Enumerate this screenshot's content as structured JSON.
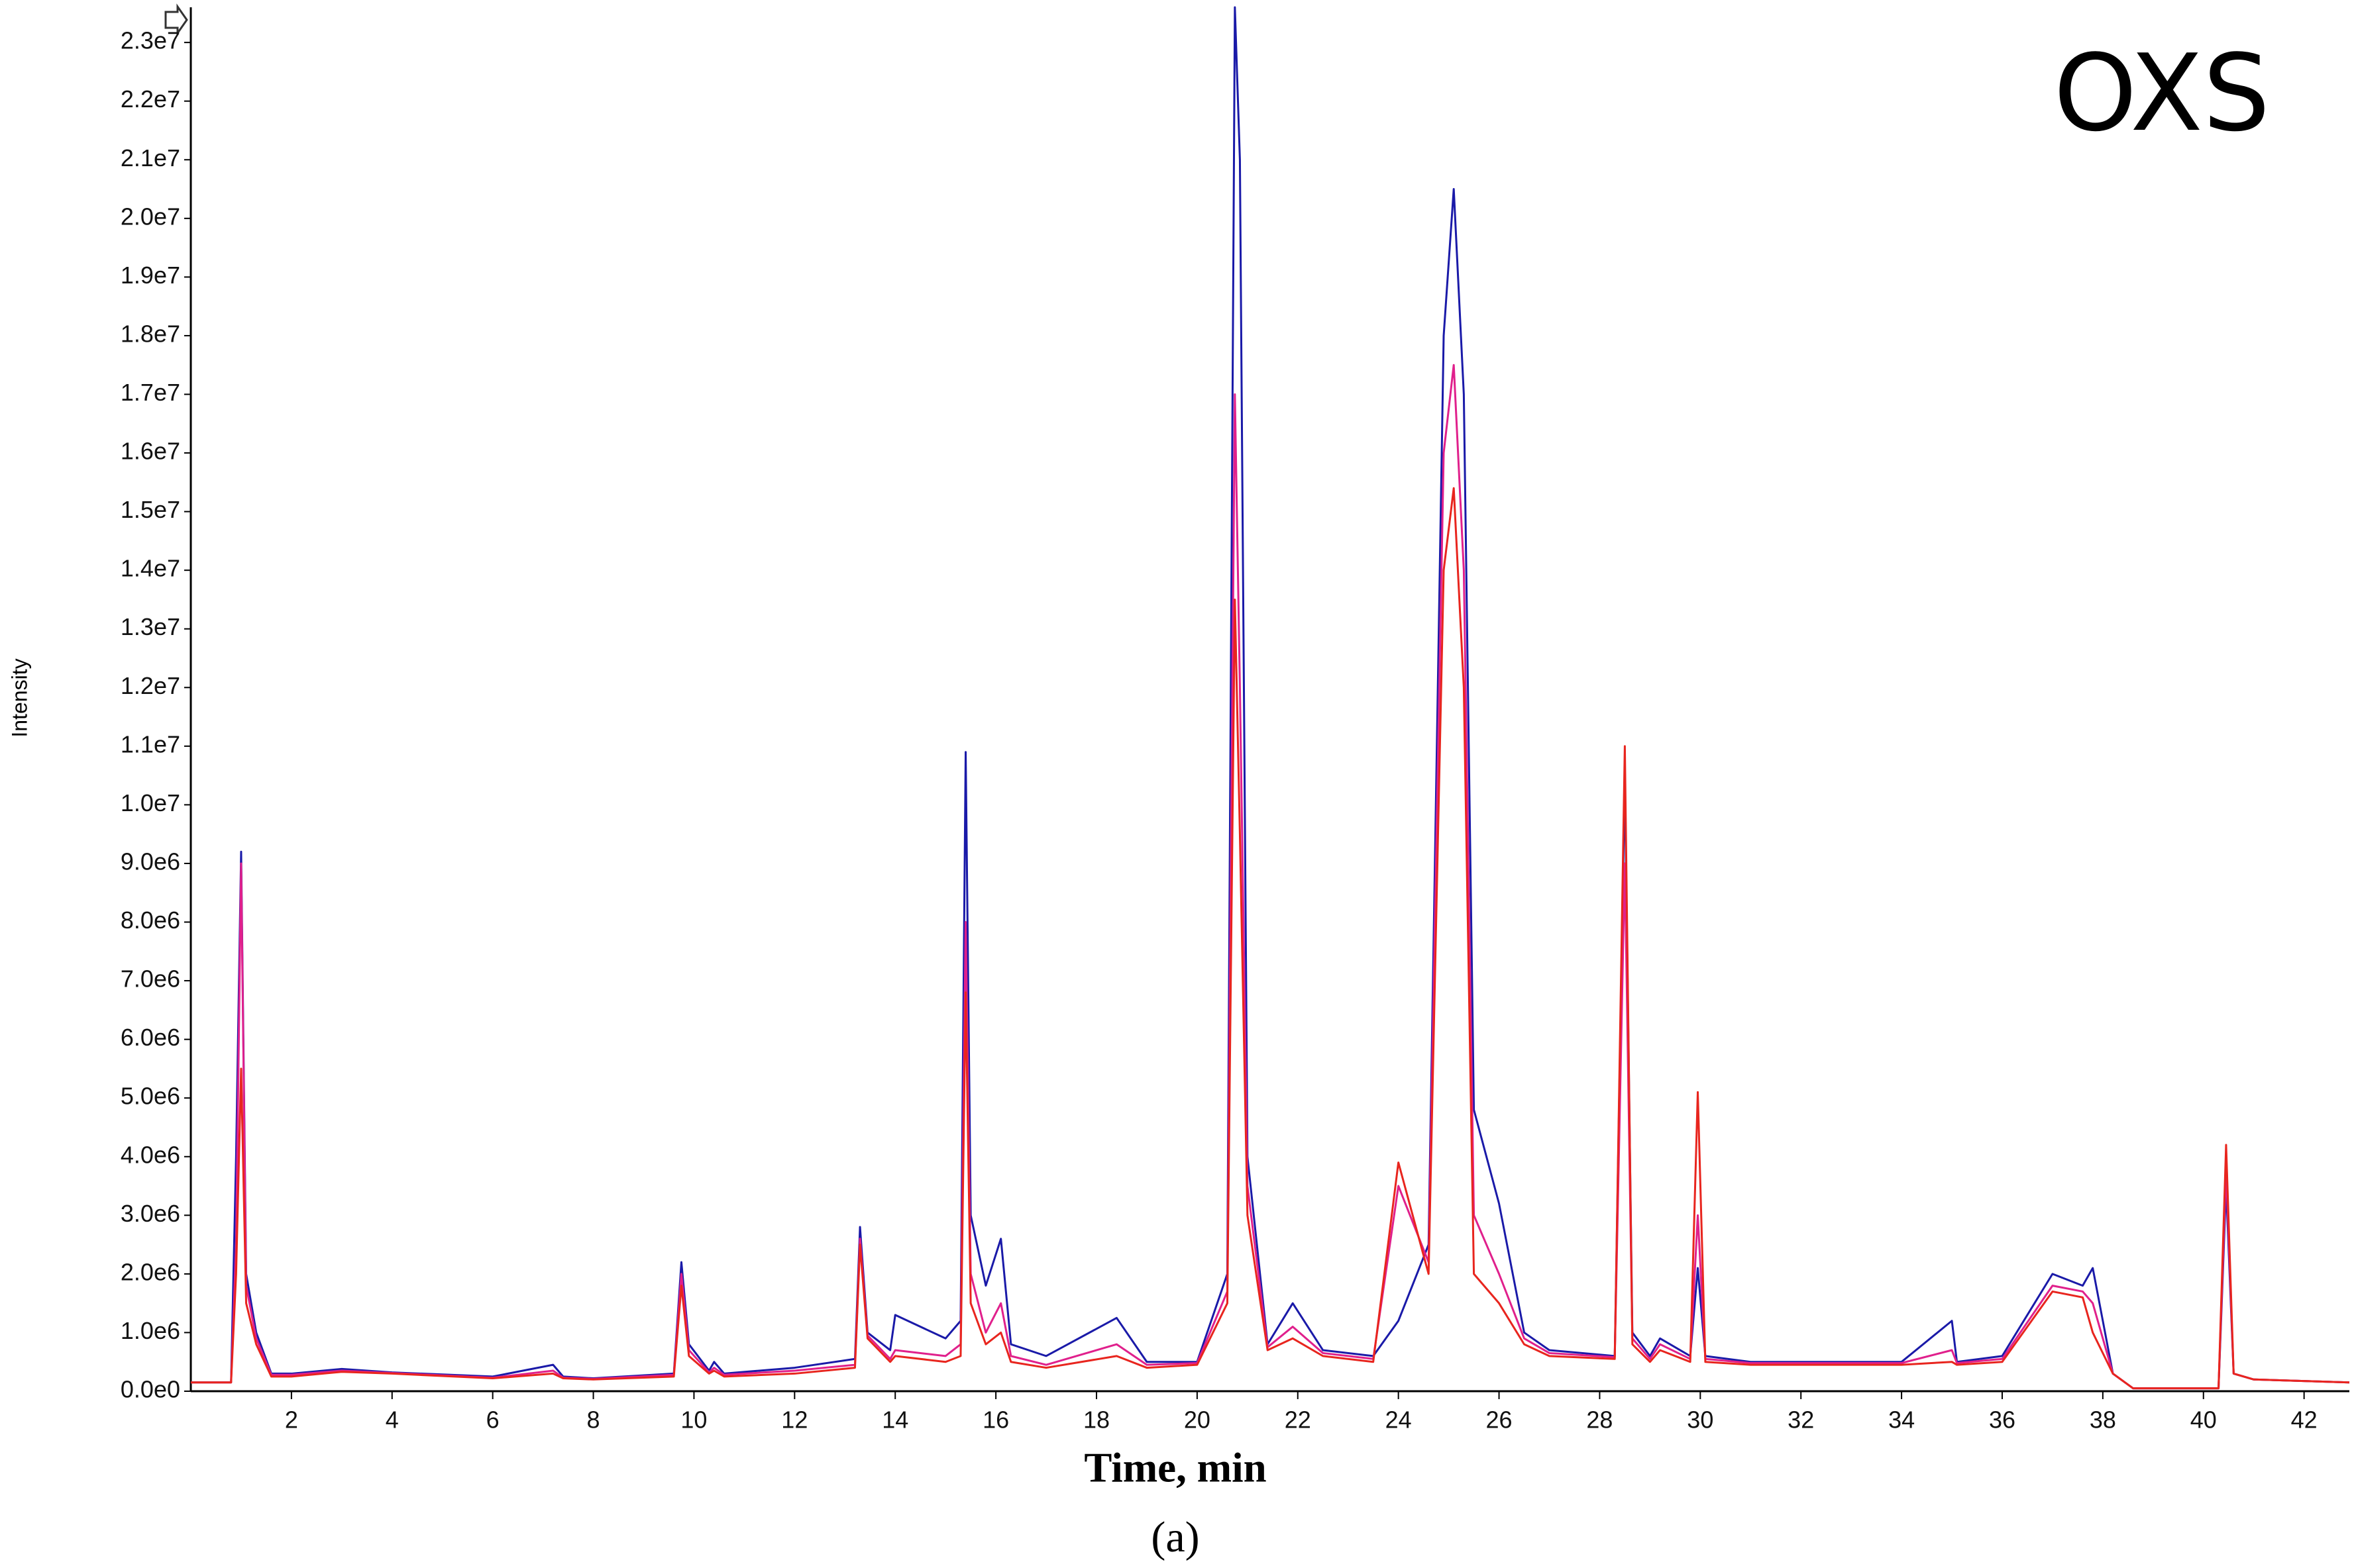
{
  "chart_data": {
    "type": "line",
    "title": "OXS",
    "x_label": "Time, min",
    "y_label": "Intensity",
    "caption": "(a)",
    "xlim": [
      0,
      42.9
    ],
    "ylim": [
      0,
      23600000
    ],
    "xticks": [
      2,
      4,
      6,
      8,
      10,
      12,
      14,
      16,
      18,
      20,
      22,
      24,
      26,
      28,
      30,
      32,
      34,
      36,
      38,
      40,
      42
    ],
    "yticks": [
      {
        "value": 0,
        "label": "0.0e0"
      },
      {
        "value": 1000000,
        "label": "1.0e6"
      },
      {
        "value": 2000000,
        "label": "2.0e6"
      },
      {
        "value": 3000000,
        "label": "3.0e6"
      },
      {
        "value": 4000000,
        "label": "4.0e6"
      },
      {
        "value": 5000000,
        "label": "5.0e6"
      },
      {
        "value": 6000000,
        "label": "6.0e6"
      },
      {
        "value": 7000000,
        "label": "7.0e6"
      },
      {
        "value": 8000000,
        "label": "8.0e6"
      },
      {
        "value": 9000000,
        "label": "9.0e6"
      },
      {
        "value": 10000000,
        "label": "1.0e7"
      },
      {
        "value": 11000000,
        "label": "1.1e7"
      },
      {
        "value": 12000000,
        "label": "1.2e7"
      },
      {
        "value": 13000000,
        "label": "1.3e7"
      },
      {
        "value": 14000000,
        "label": "1.4e7"
      },
      {
        "value": 15000000,
        "label": "1.5e7"
      },
      {
        "value": 16000000,
        "label": "1.6e7"
      },
      {
        "value": 17000000,
        "label": "1.7e7"
      },
      {
        "value": 18000000,
        "label": "1.8e7"
      },
      {
        "value": 19000000,
        "label": "1.9e7"
      },
      {
        "value": 20000000,
        "label": "2.0e7"
      },
      {
        "value": 21000000,
        "label": "2.1e7"
      },
      {
        "value": 22000000,
        "label": "2.2e7"
      },
      {
        "value": 23000000,
        "label": "2.3e7"
      }
    ],
    "grid": false,
    "x": [
      0,
      0.8,
      0.9,
      1.0,
      1.1,
      1.3,
      1.6,
      2,
      3,
      4,
      6,
      7.2,
      7.4,
      8,
      9.6,
      9.75,
      9.9,
      10.3,
      10.4,
      10.6,
      12,
      13.2,
      13.3,
      13.45,
      13.9,
      14,
      15,
      15.3,
      15.4,
      15.5,
      15.8,
      16.1,
      16.3,
      17,
      18.4,
      19,
      20,
      20.6,
      20.75,
      20.85,
      21.0,
      21.4,
      21.9,
      22.5,
      23.5,
      24,
      24.6,
      24.9,
      25.1,
      25.3,
      25.5,
      26,
      26.5,
      27,
      28.3,
      28.5,
      28.65,
      29,
      29.2,
      29.8,
      29.95,
      30.1,
      31,
      34,
      35,
      35.1,
      36,
      37,
      37.6,
      37.8,
      38.2,
      38.6,
      40.3,
      40.45,
      40.6,
      41,
      42.9
    ],
    "series": [
      {
        "color": "#1a1aa8",
        "values": [
          150000,
          150000,
          4000000,
          9200000,
          2000000,
          1000000,
          300000,
          300000,
          380000,
          320000,
          250000,
          450000,
          250000,
          220000,
          300000,
          2200000,
          800000,
          350000,
          500000,
          300000,
          400000,
          550000,
          2800000,
          1000000,
          700000,
          1300000,
          900000,
          1200000,
          10900000,
          3000000,
          1800000,
          2600000,
          800000,
          600000,
          1250000,
          500000,
          500000,
          2000000,
          23600000,
          21000000,
          4000000,
          800000,
          1500000,
          700000,
          600000,
          1200000,
          2500000,
          18000000,
          20500000,
          17000000,
          4800000,
          3200000,
          1000000,
          700000,
          600000,
          10500000,
          1000000,
          600000,
          900000,
          600000,
          2100000,
          600000,
          500000,
          500000,
          1200000,
          500000,
          600000,
          2000000,
          1800000,
          2100000,
          300000,
          50000,
          50000,
          3500000,
          300000,
          200000,
          150000
        ]
      },
      {
        "color": "#e0208c",
        "values": [
          150000,
          150000,
          2500000,
          9000000,
          1800000,
          900000,
          280000,
          280000,
          350000,
          310000,
          230000,
          350000,
          230000,
          210000,
          280000,
          2000000,
          700000,
          320000,
          400000,
          280000,
          350000,
          450000,
          2600000,
          950000,
          550000,
          700000,
          600000,
          800000,
          8000000,
          2000000,
          1000000,
          1500000,
          600000,
          450000,
          800000,
          450000,
          480000,
          1700000,
          17000000,
          12000000,
          3500000,
          750000,
          1100000,
          650000,
          550000,
          3500000,
          2200000,
          16000000,
          17500000,
          14000000,
          3000000,
          2000000,
          900000,
          650000,
          580000,
          9000000,
          900000,
          550000,
          800000,
          550000,
          3000000,
          550000,
          480000,
          480000,
          700000,
          480000,
          550000,
          1800000,
          1700000,
          1500000,
          300000,
          50000,
          50000,
          3800000,
          300000,
          200000,
          150000
        ]
      },
      {
        "color": "#e8251e",
        "values": [
          150000,
          150000,
          2000000,
          5500000,
          1500000,
          800000,
          250000,
          250000,
          330000,
          300000,
          220000,
          300000,
          220000,
          200000,
          250000,
          1800000,
          600000,
          300000,
          350000,
          250000,
          300000,
          400000,
          2500000,
          900000,
          500000,
          600000,
          500000,
          600000,
          6800000,
          1500000,
          800000,
          1000000,
          500000,
          400000,
          600000,
          400000,
          450000,
          1500000,
          13500000,
          9500000,
          3000000,
          700000,
          900000,
          600000,
          500000,
          3900000,
          2000000,
          14000000,
          15400000,
          12000000,
          2000000,
          1500000,
          800000,
          600000,
          550000,
          11000000,
          800000,
          500000,
          700000,
          500000,
          5100000,
          500000,
          450000,
          450000,
          500000,
          450000,
          500000,
          1700000,
          1600000,
          1000000,
          300000,
          50000,
          50000,
          4200000,
          300000,
          200000,
          150000
        ]
      }
    ]
  }
}
